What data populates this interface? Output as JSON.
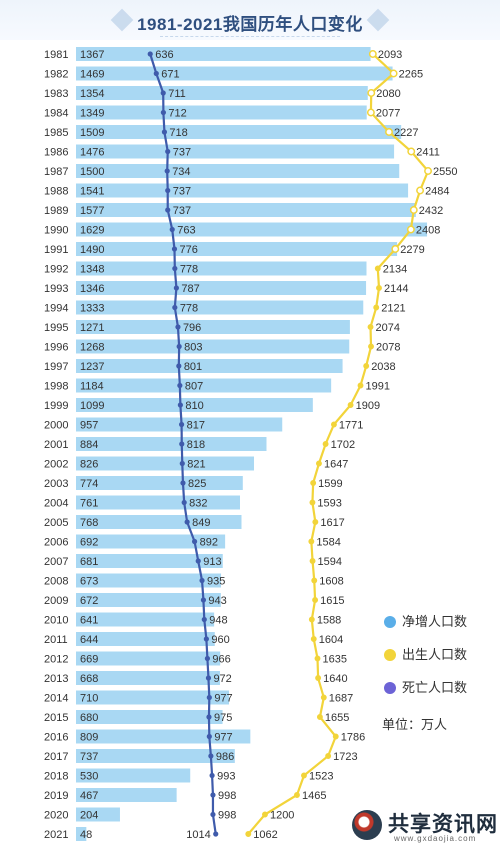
{
  "page": {
    "title": "1981-2021我国历年人口变化"
  },
  "legend": {
    "items": [
      {
        "label": "净增人口数",
        "color": "#5aaee8"
      },
      {
        "label": "出生人口数",
        "color": "#f2d43a"
      },
      {
        "label": "死亡人口数",
        "color": "#6c63d6"
      }
    ],
    "unit": "单位：万人"
  },
  "watermark": {
    "text": "共享资讯网",
    "sub": "www.gxdaojia.com"
  },
  "chart_data": {
    "type": "bar",
    "title": "1981-2021我国历年人口变化",
    "unit": "万人",
    "categories": [
      "1981",
      "1982",
      "1983",
      "1984",
      "1985",
      "1986",
      "1987",
      "1988",
      "1989",
      "1990",
      "1991",
      "1992",
      "1993",
      "1994",
      "1995",
      "1996",
      "1997",
      "1998",
      "1999",
      "2000",
      "2001",
      "2002",
      "2003",
      "2004",
      "2005",
      "2006",
      "2007",
      "2008",
      "2009",
      "2010",
      "2011",
      "2012",
      "2013",
      "2014",
      "2015",
      "2016",
      "2017",
      "2018",
      "2019",
      "2020",
      "2021"
    ],
    "series": [
      {
        "name": "净增人口数",
        "kind": "bar",
        "color": "#a9d8f3",
        "values": [
          1367,
          1469,
          1354,
          1349,
          1509,
          1476,
          1500,
          1541,
          1577,
          1629,
          1490,
          1348,
          1346,
          1333,
          1271,
          1268,
          1237,
          1184,
          1099,
          957,
          884,
          826,
          774,
          761,
          768,
          692,
          681,
          673,
          672,
          641,
          644,
          669,
          668,
          710,
          680,
          809,
          737,
          530,
          467,
          204,
          48
        ]
      },
      {
        "name": "出生人口数",
        "kind": "line",
        "color": "#f2d43a",
        "values": [
          2093,
          2265,
          2080,
          2077,
          2227,
          2411,
          2550,
          2484,
          2432,
          2408,
          2279,
          2134,
          2144,
          2121,
          2074,
          2078,
          2038,
          1991,
          1909,
          1771,
          1702,
          1647,
          1599,
          1593,
          1617,
          1584,
          1594,
          1608,
          1615,
          1588,
          1604,
          1635,
          1640,
          1687,
          1655,
          1786,
          1723,
          1523,
          1465,
          1200,
          1062
        ]
      },
      {
        "name": "死亡人口数",
        "kind": "line",
        "color": "#3f5bab",
        "values": [
          636,
          671,
          711,
          712,
          718,
          737,
          734,
          737,
          737,
          763,
          776,
          778,
          787,
          778,
          796,
          803,
          801,
          807,
          810,
          817,
          818,
          821,
          825,
          832,
          849,
          892,
          913,
          935,
          943,
          948,
          960,
          966,
          972,
          977,
          975,
          977,
          986,
          993,
          998,
          998,
          1014
        ]
      }
    ]
  }
}
